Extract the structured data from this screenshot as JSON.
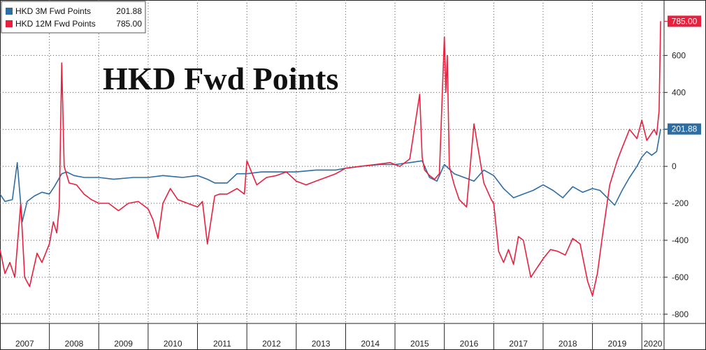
{
  "chart_data": {
    "type": "line",
    "title": "HKD Fwd Points",
    "xlabel": "",
    "ylabel": "",
    "xlim": [
      2007.0,
      2020.45
    ],
    "ylim": [
      -850,
      900
    ],
    "grid": true,
    "legend": "top-left",
    "y_ticks": [
      600,
      400,
      200,
      0,
      -200,
      -400,
      -600,
      -800
    ],
    "y_tick_labels": [
      "600",
      "400",
      "200",
      "0",
      "-200",
      "-400",
      "-600",
      "-800"
    ],
    "x_labels": [
      "2007",
      "2008",
      "2009",
      "2010",
      "2011",
      "2012",
      "2013",
      "2014",
      "2015",
      "2016",
      "2017",
      "2018",
      "2019",
      "2020"
    ],
    "series": [
      {
        "name": "HKD 3M Fwd Points",
        "legend_value": "201.88",
        "last_value_label": "201.88",
        "color": "#2c6da4",
        "x": [
          2007.0,
          2007.1,
          2007.25,
          2007.35,
          2007.45,
          2007.55,
          2007.7,
          2007.85,
          2008.0,
          2008.1,
          2008.25,
          2008.35,
          2008.5,
          2008.7,
          2009.0,
          2009.3,
          2009.7,
          2010.0,
          2010.3,
          2010.7,
          2011.0,
          2011.2,
          2011.35,
          2011.6,
          2011.8,
          2012.0,
          2012.3,
          2012.6,
          2013.0,
          2013.4,
          2013.8,
          2014.0,
          2014.3,
          2014.7,
          2015.0,
          2015.3,
          2015.55,
          2015.7,
          2015.85,
          2016.0,
          2016.2,
          2016.4,
          2016.6,
          2016.8,
          2017.0,
          2017.2,
          2017.4,
          2017.6,
          2017.8,
          2018.0,
          2018.2,
          2018.4,
          2018.6,
          2018.8,
          2019.0,
          2019.15,
          2019.3,
          2019.45,
          2019.6,
          2019.75,
          2019.9,
          2020.0,
          2020.1,
          2020.2,
          2020.3,
          2020.38
        ],
        "y": [
          -150,
          -190,
          -180,
          20,
          -300,
          -190,
          -160,
          -140,
          -150,
          -110,
          -40,
          -30,
          -50,
          -60,
          -60,
          -70,
          -60,
          -60,
          -50,
          -60,
          -50,
          -70,
          -90,
          -90,
          -40,
          -40,
          -30,
          -30,
          -30,
          -20,
          -20,
          -10,
          0,
          10,
          10,
          20,
          30,
          -60,
          -80,
          10,
          -40,
          -60,
          -80,
          -20,
          -50,
          -120,
          -170,
          -150,
          -130,
          -100,
          -130,
          -170,
          -110,
          -140,
          -120,
          -130,
          -170,
          -210,
          -130,
          -60,
          0,
          50,
          80,
          60,
          80,
          202
        ]
      },
      {
        "name": "HKD 12M Fwd Points",
        "legend_value": "785.00",
        "last_value_label": "785.00",
        "color": "#e8203e",
        "x": [
          2007.0,
          2007.1,
          2007.2,
          2007.3,
          2007.42,
          2007.5,
          2007.6,
          2007.75,
          2007.85,
          2008.0,
          2008.08,
          2008.15,
          2008.2,
          2008.25,
          2008.3,
          2008.4,
          2008.55,
          2008.7,
          2008.85,
          2009.0,
          2009.2,
          2009.4,
          2009.6,
          2009.8,
          2010.0,
          2010.1,
          2010.2,
          2010.3,
          2010.45,
          2010.6,
          2010.8,
          2011.0,
          2011.1,
          2011.2,
          2011.35,
          2011.45,
          2011.6,
          2011.8,
          2011.95,
          2012.0,
          2012.2,
          2012.4,
          2012.6,
          2012.8,
          2013.0,
          2013.2,
          2013.4,
          2013.6,
          2013.8,
          2014.0,
          2014.3,
          2014.6,
          2014.9,
          2015.1,
          2015.3,
          2015.5,
          2015.55,
          2015.6,
          2015.7,
          2015.8,
          2015.9,
          2016.0,
          2016.03,
          2016.06,
          2016.1,
          2016.2,
          2016.3,
          2016.45,
          2016.6,
          2016.8,
          2016.95,
          2017.0,
          2017.1,
          2017.2,
          2017.3,
          2017.4,
          2017.5,
          2017.6,
          2017.75,
          2017.9,
          2018.0,
          2018.15,
          2018.3,
          2018.45,
          2018.6,
          2018.75,
          2018.9,
          2019.0,
          2019.1,
          2019.2,
          2019.35,
          2019.5,
          2019.6,
          2019.75,
          2019.9,
          2020.0,
          2020.1,
          2020.2,
          2020.25,
          2020.3,
          2020.35,
          2020.38
        ],
        "y": [
          -450,
          -580,
          -520,
          -600,
          -200,
          -600,
          -650,
          -470,
          -520,
          -420,
          -300,
          -360,
          -220,
          560,
          0,
          -90,
          -100,
          -150,
          -180,
          -200,
          -200,
          -240,
          -200,
          -190,
          -230,
          -290,
          -390,
          -200,
          -120,
          -180,
          -200,
          -220,
          -190,
          -420,
          -160,
          -150,
          -150,
          -120,
          -150,
          30,
          -100,
          -60,
          -50,
          -30,
          -80,
          -100,
          -80,
          -60,
          -40,
          -10,
          0,
          10,
          20,
          0,
          40,
          390,
          50,
          -20,
          -50,
          -70,
          -40,
          700,
          400,
          600,
          0,
          -100,
          -180,
          -220,
          230,
          -90,
          -180,
          -200,
          -460,
          -520,
          -450,
          -530,
          -380,
          -400,
          -600,
          -540,
          -500,
          -450,
          -460,
          -480,
          -390,
          -420,
          -620,
          -700,
          -580,
          -380,
          -100,
          30,
          100,
          200,
          150,
          250,
          140,
          180,
          200,
          170,
          300,
          785
        ]
      }
    ]
  }
}
